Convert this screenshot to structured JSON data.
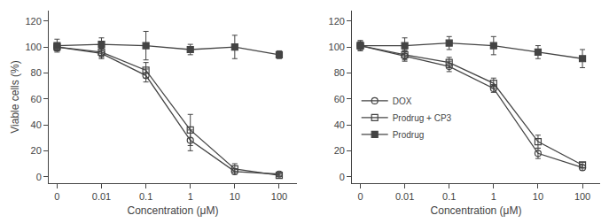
{
  "chart_data": [
    {
      "type": "line",
      "log": "x",
      "grid": false,
      "xlabel": "Concentration (μM)",
      "ylabel": "Viable cells (%)",
      "x": [
        0.001,
        0.01,
        0.1,
        1,
        10,
        100
      ],
      "xlim": [
        0.00065,
        250
      ],
      "xticks": [
        {
          "value": 0.001,
          "label": "0"
        },
        0.01,
        0.1,
        1,
        10,
        100
      ],
      "ylim": [
        -5,
        128
      ],
      "yticks": [
        0,
        20,
        40,
        60,
        80,
        100,
        120
      ],
      "series": [
        {
          "name": "DOX",
          "color": "#444444",
          "marker": "circle-open",
          "values": [
            100,
            95,
            78,
            28,
            4,
            2
          ],
          "errors": [
            3,
            4,
            5,
            8,
            2,
            1
          ]
        },
        {
          "name": "Prodrug + CP3",
          "color": "#444444",
          "marker": "square-open",
          "values": [
            100,
            96,
            82,
            36,
            6,
            1
          ],
          "errors": [
            3,
            4,
            6,
            12,
            4,
            1
          ]
        },
        {
          "name": "Prodrug",
          "color": "#444444",
          "marker": "square",
          "values": [
            101,
            102,
            101,
            98,
            100,
            94
          ],
          "errors": [
            5,
            5,
            11,
            4,
            9,
            3
          ]
        }
      ]
    },
    {
      "type": "line",
      "log": "x",
      "grid": false,
      "legend": "left",
      "xlabel": "Concentration (μM)",
      "x": [
        0.001,
        0.01,
        0.1,
        1,
        10,
        100
      ],
      "xlim": [
        0.00065,
        250
      ],
      "xticks": [
        {
          "value": 0.001,
          "label": "0"
        },
        0.01,
        0.1,
        1,
        10,
        100
      ],
      "ylim": [
        -5,
        128
      ],
      "yticks": [
        0,
        20,
        40,
        60,
        80,
        100,
        120
      ],
      "series": [
        {
          "name": "DOX",
          "color": "#444444",
          "marker": "circle-open",
          "values": [
            101,
            93,
            85,
            68,
            18,
            7
          ],
          "errors": [
            3,
            4,
            4,
            3,
            4,
            2
          ]
        },
        {
          "name": "Prodrug + CP3",
          "color": "#444444",
          "marker": "square-open",
          "values": [
            101,
            94,
            88,
            72,
            27,
            9
          ],
          "errors": [
            3,
            4,
            4,
            4,
            5,
            2
          ]
        },
        {
          "name": "Prodrug",
          "color": "#444444",
          "marker": "square",
          "values": [
            101,
            101,
            103,
            101,
            96,
            91
          ],
          "errors": [
            4,
            6,
            5,
            7,
            5,
            7
          ]
        }
      ]
    }
  ]
}
